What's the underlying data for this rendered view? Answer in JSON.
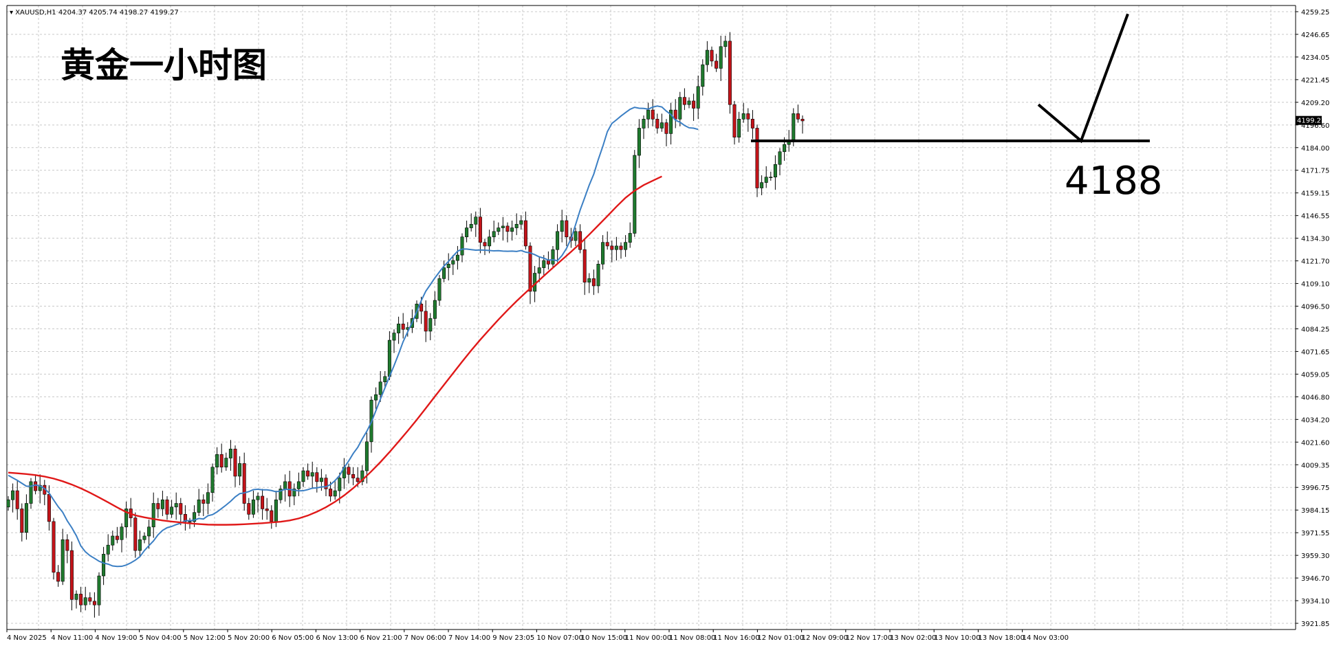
{
  "chart_data": {
    "type": "candlestick",
    "symbol": "XAUUSD,H1",
    "ohlc_readout": "4204.37 4205.74 4198.27 4199.27",
    "title": "黄金一小时图",
    "level_label": "4188",
    "support_level": 4188,
    "current_price": "4199.27",
    "ylim": [
      3921.85,
      4259.25
    ],
    "y_ticks": [
      "4259.25",
      "4246.65",
      "4234.05",
      "4221.45",
      "4209.20",
      "4196.60",
      "4184.00",
      "4171.75",
      "4159.15",
      "4146.55",
      "4134.30",
      "4121.70",
      "4109.10",
      "4096.50",
      "4084.25",
      "4071.65",
      "4059.05",
      "4046.80",
      "4034.20",
      "4021.60",
      "4009.35",
      "3996.75",
      "3984.15",
      "3971.55",
      "3959.30",
      "3946.70",
      "3934.10",
      "3921.85"
    ],
    "x_labels": [
      "4 Nov 2025",
      "4 Nov 11:00",
      "4 Nov 19:00",
      "5 Nov 04:00",
      "5 Nov 12:00",
      "5 Nov 20:00",
      "6 Nov 05:00",
      "6 Nov 13:00",
      "6 Nov 21:00",
      "7 Nov 06:00",
      "7 Nov 14:00",
      "9 Nov 23:05",
      "10 Nov 07:00",
      "10 Nov 15:00",
      "11 Nov 00:00",
      "11 Nov 08:00",
      "11 Nov 16:00",
      "12 Nov 01:00",
      "12 Nov 09:00",
      "12 Nov 17:00",
      "13 Nov 02:00",
      "13 Nov 10:00",
      "13 Nov 18:00",
      "14 Nov 03:00"
    ],
    "candles_close": [
      3990,
      3995,
      3985,
      3972,
      3988,
      4000,
      3995,
      3998,
      3993,
      3978,
      3950,
      3945,
      3968,
      3962,
      3935,
      3938,
      3932,
      3936,
      3934,
      3932,
      3948,
      3960,
      3965,
      3970,
      3968,
      3975,
      3985,
      3980,
      3962,
      3968,
      3970,
      3975,
      3988,
      3985,
      3990,
      3982,
      3986,
      3988,
      3982,
      3978,
      3978,
      3983,
      3990,
      3988,
      3994,
      4008,
      4015,
      4008,
      4013,
      4018,
      4003,
      4010,
      3988,
      3982,
      3990,
      3992,
      3985,
      3984,
      3978,
      3990,
      3996,
      4000,
      3992,
      3996,
      4000,
      4006,
      4003,
      4005,
      4000,
      4002,
      3996,
      3992,
      3995,
      4002,
      4008,
      4004,
      4002,
      4000,
      4006,
      4022,
      4045,
      4048,
      4055,
      4058,
      4078,
      4082,
      4087,
      4084,
      4085,
      4090,
      4098,
      4094,
      4083,
      4090,
      4100,
      4112,
      4118,
      4120,
      4122,
      4125,
      4135,
      4140,
      4142,
      4146,
      4132,
      4130,
      4135,
      4138,
      4140,
      4141,
      4138,
      4140,
      4142,
      4144,
      4130,
      4105,
      4115,
      4118,
      4122,
      4120,
      4128,
      4138,
      4144,
      4135,
      4133,
      4138,
      4128,
      4110,
      4112,
      4108,
      4120,
      4132,
      4130,
      4128,
      4130,
      4128,
      4132,
      4137,
      4180,
      4195,
      4200,
      4205,
      4200,
      4195,
      4198,
      4192,
      4205,
      4200,
      4212,
      4208,
      4210,
      4206,
      4218,
      4230,
      4238,
      4232,
      4228,
      4240,
      4243,
      4208,
      4190,
      4200,
      4203,
      4200,
      4195,
      4162,
      4165,
      4168,
      4168,
      4175,
      4182,
      4186,
      4188,
      4203,
      4200,
      4199
    ],
    "ma_fast": [
      4003.5,
      4002.1,
      4000.7,
      3999.1,
      3997.5,
      3997.5,
      3998.2,
      3997.6,
      3996.2,
      3993.7,
      3989.9,
      3986.2,
      3983.1,
      3978.4,
      3974.6,
      3970.2,
      3964.5,
      3961.3,
      3959.2,
      3957.7,
      3956.1,
      3955.1,
      3954.5,
      3953.5,
      3953.2,
      3953.3,
      3954.0,
      3955.2,
      3956.7,
      3958.6,
      3962.0,
      3964.7,
      3967.3,
      3970.7,
      3973.1,
      3974.6,
      3975.3,
      3976.3,
      3977.1,
      3978.5,
      3978.5,
      3978.8,
      3979.7,
      3979.4,
      3981.2,
      3981.8,
      3983.3,
      3985.2,
      3987.1,
      3989.2,
      3991.6,
      3993.4,
      3993.8,
      3994.5,
      3995.6,
      3995.8,
      3995.5,
      3995.5,
      3995.1,
      3994.4,
      3994.9,
      3995.8,
      3995.7,
      3995.3,
      3994.9,
      3995.0,
      3995.6,
      3996.4,
      3996.6,
      3997.1,
      3997.2,
      3998.4,
      4000.6,
      4003.4,
      4007.8,
      4011.4,
      4015.5,
      4018.9,
      4023.6,
      4027.8,
      4032.8,
      4039.2,
      4045.6,
      4051.8,
      4058.0,
      4064.0,
      4070.4,
      4077.2,
      4082.6,
      4087.8,
      4093.7,
      4099.9,
      4105.1,
      4108.7,
      4112.4,
      4115.7,
      4118.9,
      4121.5,
      4124.4,
      4127.1,
      4128.3,
      4128.3,
      4128.0,
      4127.7,
      4127.8,
      4127.7,
      4127.5,
      4127.3,
      4127.4,
      4127.2,
      4127.1,
      4127.2,
      4127.0,
      4127.5,
      4126.6,
      4126.2,
      4125.2,
      4124.0,
      4123.3,
      4122.2,
      4122.4,
      4121.9,
      4124.7,
      4128.7,
      4134.1,
      4141.8,
      4149.8,
      4156.6,
      4163.6,
      4169.6,
      4177.7,
      4185.0,
      4193.1,
      4197.6,
      4199.6,
      4201.7,
      4203.6,
      4205.4,
      4206.5,
      4206.0,
      4205.9,
      4205.5,
      4206.6,
      4207.2,
      4206.7,
      4204.4,
      4202.5,
      4199.4,
      4198.3,
      4196.5,
      4195.2,
      4195.0,
      4194.3
    ],
    "ma_slow": [
      4005.0,
      4004.6,
      4004.2,
      4003.6,
      4002.8,
      4001.7,
      4000.2,
      3998.4,
      3996.3,
      3993.9,
      3991.3,
      3988.6,
      3985.8,
      3983.2,
      3981.4,
      3980.3,
      3979.4,
      3978.6,
      3978.0,
      3977.5,
      3977.0,
      3976.6,
      3976.3,
      3976.2,
      3976.2,
      3976.3,
      3976.5,
      3976.8,
      3977.1,
      3977.5,
      3977.9,
      3978.6,
      3979.7,
      3981.3,
      3983.4,
      3985.9,
      3988.9,
      3992.4,
      3996.4,
      4000.9,
      4005.7,
      4010.8,
      4016.3,
      4022.1,
      4028.0,
      4034.1,
      4040.5,
      4047.0,
      4053.4,
      4059.8,
      4066.2,
      4072.4,
      4078.3,
      4083.9,
      4089.4,
      4094.6,
      4099.6,
      4104.3,
      4108.9,
      4113.5,
      4118.0,
      4122.4,
      4126.8,
      4131.4,
      4136.3,
      4141.4,
      4146.5,
      4151.7,
      4156.6,
      4160.5,
      4163.6,
      4166.0,
      4168.4
    ]
  }
}
